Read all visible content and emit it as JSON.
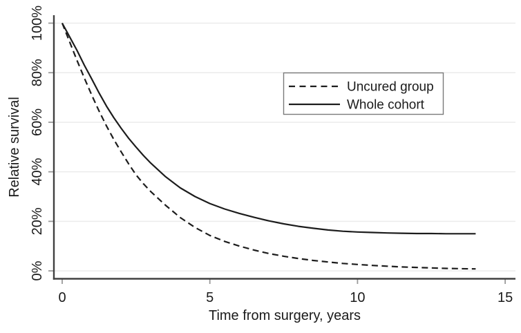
{
  "chart_data": {
    "type": "line",
    "title": "",
    "xlabel": "Time from surgery, years",
    "ylabel": "Relative survival",
    "xlim": [
      0,
      15
    ],
    "ylim": [
      0,
      100
    ],
    "xticks": [
      0,
      5,
      10,
      15
    ],
    "xtick_labels": [
      "0",
      "5",
      "10",
      "15"
    ],
    "yticks": [
      0,
      20,
      40,
      60,
      80,
      100
    ],
    "ytick_labels": [
      "0%",
      "20%",
      "40%",
      "60%",
      "80%",
      "100%"
    ],
    "ytick_label_rotation": -90,
    "grid": "horizontal",
    "legend_position": "upper-right-inside",
    "x": [
      0,
      0.25,
      0.5,
      0.75,
      1,
      1.25,
      1.5,
      1.75,
      2,
      2.25,
      2.5,
      2.75,
      3,
      3.5,
      4,
      4.5,
      5,
      5.5,
      6,
      6.5,
      7,
      7.5,
      8,
      8.5,
      9,
      9.5,
      10,
      10.5,
      11,
      11.5,
      12,
      12.5,
      13,
      13.5,
      14
    ],
    "series": [
      {
        "name": "Uncured group",
        "style": "dashed",
        "color": "#1c1c1c",
        "values": [
          100,
          92.5,
          85,
          77.8,
          71,
          64.5,
          58.5,
          53,
          48,
          43.2,
          38.8,
          35.2,
          32,
          26.5,
          21.5,
          17.5,
          14.3,
          11.9,
          10,
          8.4,
          7,
          5.9,
          5,
          4.2,
          3.6,
          3,
          2.6,
          2.2,
          1.9,
          1.6,
          1.4,
          1.2,
          1,
          0.9,
          0.8
        ]
      },
      {
        "name": "Whole cohort",
        "style": "solid",
        "color": "#1c1c1c",
        "values": [
          100,
          94.5,
          89,
          83,
          77.5,
          71.8,
          66.5,
          61.8,
          57.5,
          53.5,
          50,
          46.6,
          43.5,
          38,
          33.5,
          30,
          27.2,
          25,
          23.2,
          21.6,
          20.2,
          19,
          18,
          17.2,
          16.5,
          16,
          15.7,
          15.5,
          15.3,
          15.2,
          15.1,
          15.1,
          15,
          15,
          15
        ]
      }
    ]
  },
  "colors": {
    "background": "#ffffff",
    "curve": "#1c1c1c",
    "axis": "#404040",
    "tick": "#9a9a9a",
    "grid": "#ebebeb",
    "text": "#1a1a1a",
    "legend_border": "#7a7a7a",
    "legend_background": "#ffffff"
  }
}
